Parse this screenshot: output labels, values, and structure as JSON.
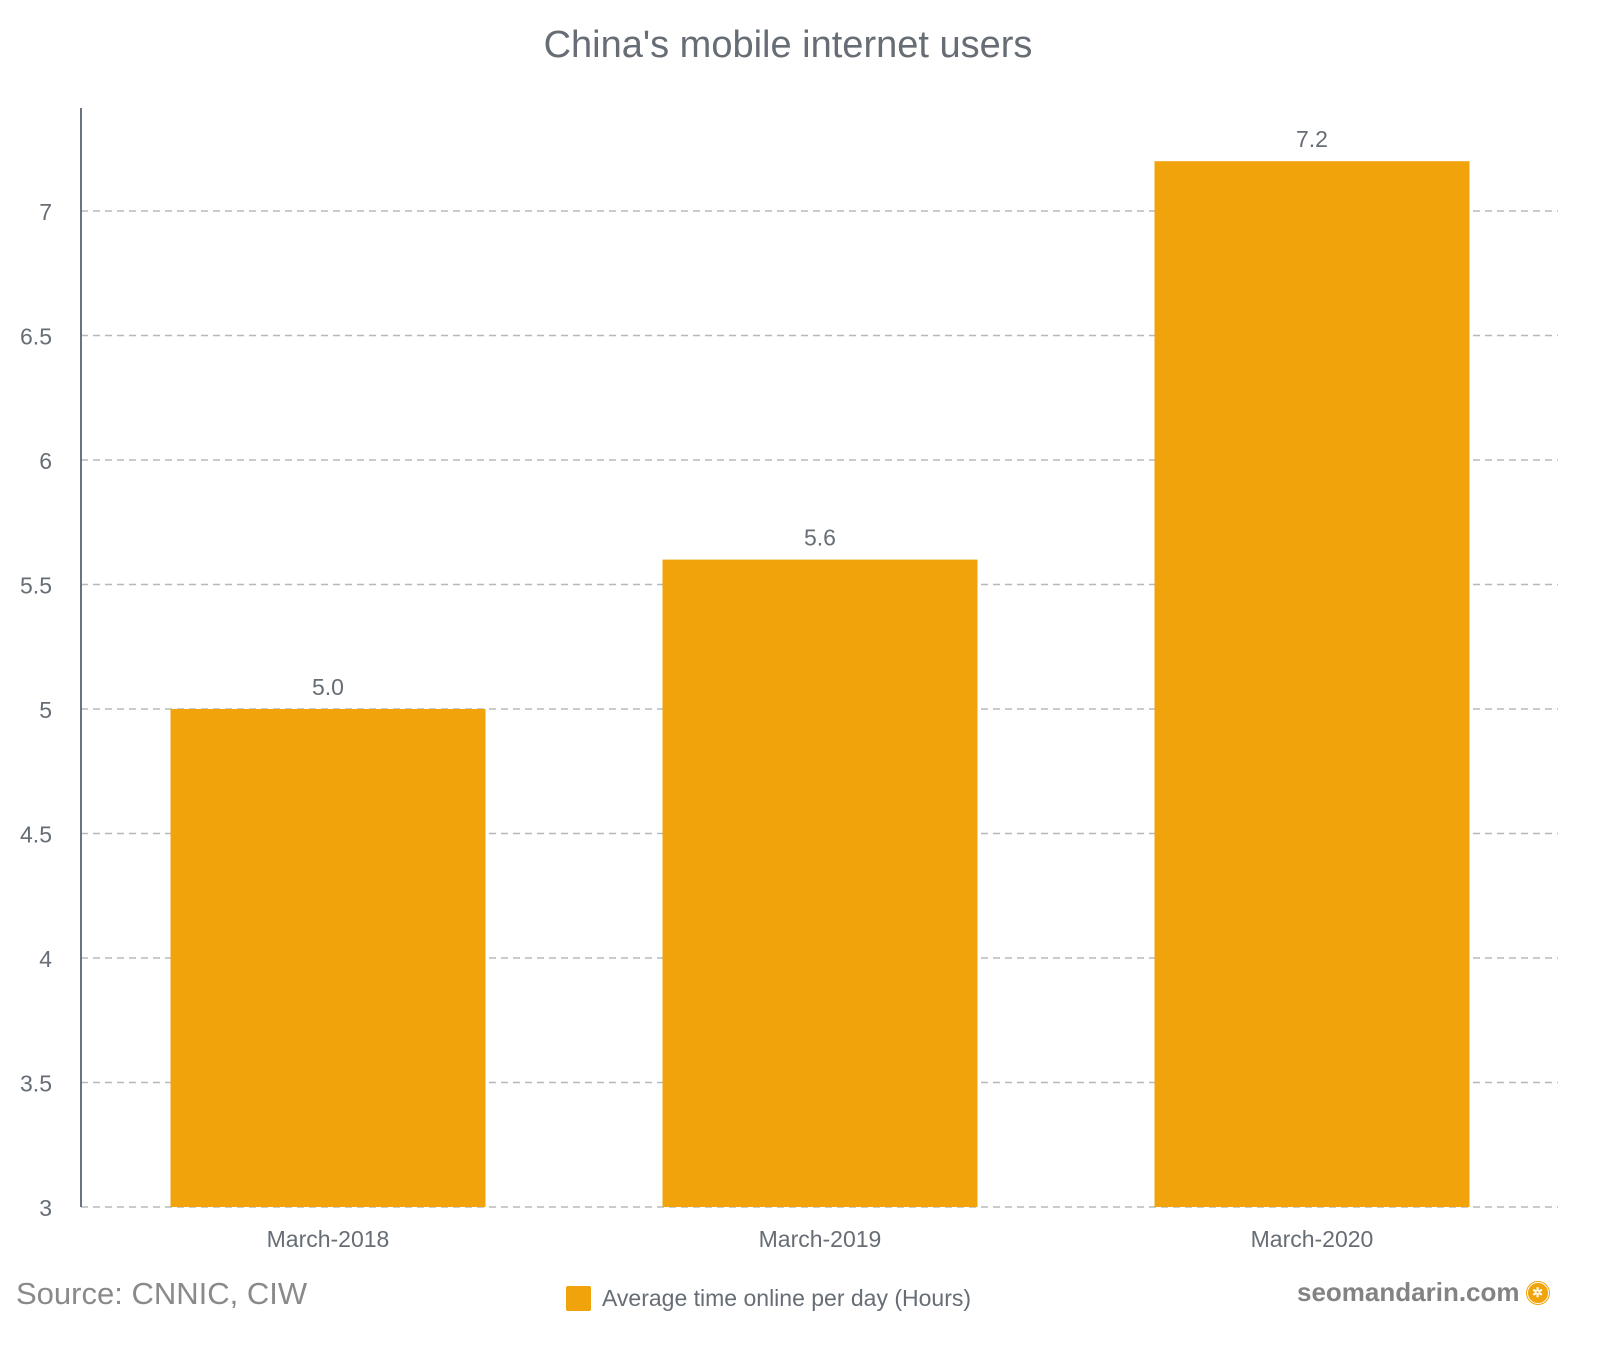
{
  "chart_data": {
    "type": "bar",
    "title": "China's mobile internet users",
    "categories": [
      "March-2018",
      "March-2019",
      "March-2020"
    ],
    "series": [
      {
        "name": "Average time online per day (Hours)",
        "values": [
          5.0,
          5.6,
          7.2
        ]
      }
    ],
    "data_labels": [
      "5.0",
      "5.6",
      "7.2"
    ],
    "yticks": [
      "3",
      "3.5",
      "4",
      "4.5",
      "5",
      "5.5",
      "6",
      "6.5",
      "7"
    ],
    "ylim": [
      3,
      7.4
    ],
    "grid": true,
    "legend": "bottom",
    "color": "#f0a30a"
  },
  "source": "Source:  CNNIC, CIW",
  "brand": "seomandarin.com"
}
